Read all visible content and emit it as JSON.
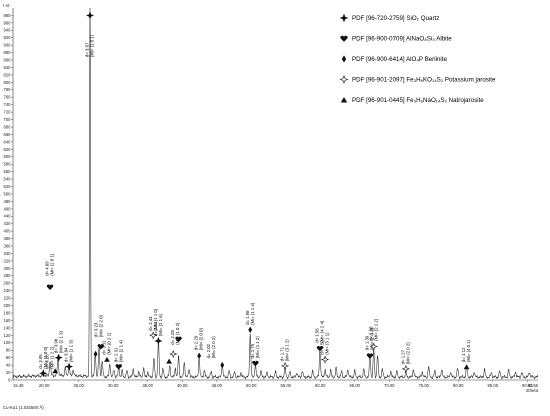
{
  "chart_data": {
    "type": "line",
    "y_unit_label": "I·nt",
    "x_unit_label": "2theta",
    "wavelength_label": "Cu-Kα1 (1.540560 Å)",
    "xlim": [
      15.48,
      91.55
    ],
    "ylim": [
      0,
      1000
    ],
    "x_tick_values": [
      20,
      25,
      30,
      35,
      40,
      45,
      50,
      55,
      60,
      65,
      70,
      75,
      80,
      85,
      90
    ],
    "x_tick_labels": [
      "20.00",
      "25.00",
      "30.00",
      "35.00",
      "40.00",
      "45.00",
      "50.00",
      "55.00",
      "60.00",
      "65.00",
      "70.00",
      "75.00",
      "80.00",
      "85.00",
      "90.00"
    ],
    "x_end_labels": [
      "15.48",
      "91.55"
    ],
    "y_tick_values": [
      0,
      20,
      40,
      60,
      80,
      100,
      120,
      140,
      160,
      180,
      200,
      220,
      240,
      260,
      280,
      300,
      320,
      340,
      360,
      380,
      400,
      420,
      440,
      460,
      480,
      500,
      520,
      540,
      560,
      580,
      600,
      620,
      640,
      660,
      680,
      700,
      720,
      740,
      760,
      780,
      800,
      820,
      840,
      860,
      880,
      900,
      920,
      940,
      960,
      980
    ],
    "grid": false,
    "legend_position": "top-right",
    "legend": [
      {
        "marker": "star4-solid",
        "label": "PDF [96-720-2759] SiO₂ Quartz"
      },
      {
        "marker": "heart",
        "label": "PDF [96-900-0709] AlNaO₈Si₃ Albite"
      },
      {
        "marker": "diamond",
        "label": "PDF [96-900-6414] AlO₄P Berlinite"
      },
      {
        "marker": "star4-open",
        "label": "PDF [96-901-2097] Fe₃H₆KO₁₄S₂ Potassium jarosite"
      },
      {
        "marker": "triangle",
        "label": "PDF [96-901-0445] Fe₃H₆NaO₁₄S₂ Natrojarosite"
      }
    ],
    "peaks": [
      {
        "x": 19.87,
        "y": 12
      },
      {
        "x": 20.85,
        "y": 40
      },
      {
        "x": 22.0,
        "y": 52
      },
      {
        "x": 23.05,
        "y": 22
      },
      {
        "x": 23.6,
        "y": 30
      },
      {
        "x": 24.2,
        "y": 16
      },
      {
        "x": 26.64,
        "y": 1000
      },
      {
        "x": 27.4,
        "y": 62
      },
      {
        "x": 27.95,
        "y": 78
      },
      {
        "x": 28.4,
        "y": 40
      },
      {
        "x": 29.5,
        "y": 35
      },
      {
        "x": 30.1,
        "y": 20
      },
      {
        "x": 30.8,
        "y": 28
      },
      {
        "x": 31.3,
        "y": 18
      },
      {
        "x": 32.0,
        "y": 16
      },
      {
        "x": 32.9,
        "y": 22
      },
      {
        "x": 33.7,
        "y": 15
      },
      {
        "x": 34.4,
        "y": 25
      },
      {
        "x": 35.0,
        "y": 14
      },
      {
        "x": 35.9,
        "y": 50
      },
      {
        "x": 36.55,
        "y": 95
      },
      {
        "x": 37.2,
        "y": 22
      },
      {
        "x": 38.2,
        "y": 30
      },
      {
        "x": 39.0,
        "y": 24
      },
      {
        "x": 39.47,
        "y": 55
      },
      {
        "x": 40.3,
        "y": 40
      },
      {
        "x": 41.0,
        "y": 22
      },
      {
        "x": 42.45,
        "y": 52
      },
      {
        "x": 43.2,
        "y": 18
      },
      {
        "x": 44.2,
        "y": 14
      },
      {
        "x": 45.8,
        "y": 32
      },
      {
        "x": 46.8,
        "y": 16
      },
      {
        "x": 47.6,
        "y": 14
      },
      {
        "x": 48.5,
        "y": 12
      },
      {
        "x": 49.85,
        "y": 115
      },
      {
        "x": 50.6,
        "y": 35
      },
      {
        "x": 51.4,
        "y": 15
      },
      {
        "x": 52.3,
        "y": 12
      },
      {
        "x": 53.5,
        "y": 14
      },
      {
        "x": 54.9,
        "y": 28
      },
      {
        "x": 55.6,
        "y": 14
      },
      {
        "x": 56.6,
        "y": 12
      },
      {
        "x": 57.4,
        "y": 16
      },
      {
        "x": 58.9,
        "y": 15
      },
      {
        "x": 59.95,
        "y": 70
      },
      {
        "x": 60.7,
        "y": 20
      },
      {
        "x": 61.5,
        "y": 18
      },
      {
        "x": 62.3,
        "y": 24
      },
      {
        "x": 63.1,
        "y": 15
      },
      {
        "x": 64.0,
        "y": 22
      },
      {
        "x": 65.0,
        "y": 16
      },
      {
        "x": 66.3,
        "y": 20
      },
      {
        "x": 67.2,
        "y": 55
      },
      {
        "x": 67.75,
        "y": 75
      },
      {
        "x": 68.3,
        "y": 58
      },
      {
        "x": 69.0,
        "y": 20
      },
      {
        "x": 70.2,
        "y": 16
      },
      {
        "x": 71.1,
        "y": 14
      },
      {
        "x": 72.4,
        "y": 14
      },
      {
        "x": 73.5,
        "y": 22
      },
      {
        "x": 74.8,
        "y": 14
      },
      {
        "x": 75.7,
        "y": 28
      },
      {
        "x": 76.6,
        "y": 15
      },
      {
        "x": 77.6,
        "y": 22
      },
      {
        "x": 78.9,
        "y": 14
      },
      {
        "x": 79.9,
        "y": 22
      },
      {
        "x": 81.2,
        "y": 28
      },
      {
        "x": 82.3,
        "y": 14
      },
      {
        "x": 83.8,
        "y": 20
      },
      {
        "x": 84.8,
        "y": 12
      },
      {
        "x": 86.0,
        "y": 14
      },
      {
        "x": 87.3,
        "y": 18
      },
      {
        "x": 88.3,
        "y": 14
      },
      {
        "x": 89.2,
        "y": 12
      },
      {
        "x": 90.3,
        "y": 14
      }
    ],
    "phase_markers": [
      {
        "x": 19.87,
        "y": 18,
        "marker": "star4-solid"
      },
      {
        "x": 21.6,
        "y": 24,
        "marker": "triangle"
      },
      {
        "x": 20.85,
        "y": 250,
        "marker": "heart"
      },
      {
        "x": 22.1,
        "y": 60,
        "marker": "star4-solid"
      },
      {
        "x": 23.6,
        "y": 36,
        "marker": "star4-solid"
      },
      {
        "x": 26.64,
        "y": 980,
        "marker": "star4-solid"
      },
      {
        "x": 27.45,
        "y": 70,
        "marker": "diamond"
      },
      {
        "x": 28.2,
        "y": 90,
        "marker": "heart"
      },
      {
        "x": 29.1,
        "y": 55,
        "marker": "triangle"
      },
      {
        "x": 30.8,
        "y": 36,
        "marker": "heart"
      },
      {
        "x": 35.8,
        "y": 120,
        "marker": "star4-open"
      },
      {
        "x": 36.55,
        "y": 105,
        "marker": "star4-solid"
      },
      {
        "x": 38.1,
        "y": 50,
        "marker": "triangle"
      },
      {
        "x": 38.7,
        "y": 70,
        "marker": "star4-open"
      },
      {
        "x": 39.47,
        "y": 110,
        "marker": "heart"
      },
      {
        "x": 42.45,
        "y": 65,
        "marker": "diamond"
      },
      {
        "x": 45.8,
        "y": 40,
        "marker": "diamond"
      },
      {
        "x": 49.85,
        "y": 135,
        "marker": "diamond"
      },
      {
        "x": 50.6,
        "y": 45,
        "marker": "heart"
      },
      {
        "x": 54.9,
        "y": 38,
        "marker": "star4-open"
      },
      {
        "x": 59.95,
        "y": 85,
        "marker": "heart"
      },
      {
        "x": 60.7,
        "y": 55,
        "marker": "star4-open"
      },
      {
        "x": 67.2,
        "y": 65,
        "marker": "heart"
      },
      {
        "x": 67.75,
        "y": 90,
        "marker": "star4-open"
      },
      {
        "x": 72.4,
        "y": 30,
        "marker": "star4-open"
      },
      {
        "x": 81.2,
        "y": 35,
        "marker": "triangle"
      }
    ],
    "annotations": [
      {
        "x": 19.87,
        "y": 30,
        "d": "d= 3.95",
        "hkl": "(Mi= (1 0 0)"
      },
      {
        "x": 20.85,
        "y": 280,
        "d": "d= 4.09",
        "hkl": "(Mi= (2 0 1)"
      },
      {
        "x": 20.85,
        "y": 30,
        "d": "d= 4.26",
        "hkl": "(Mi= (1 2 2)"
      },
      {
        "x": 22.1,
        "y": 72,
        "d": "d= 3.98",
        "hkl": "(Mi= (2 1 3)"
      },
      {
        "x": 23.6,
        "y": 48,
        "d": "d= 3.84",
        "hkl": "(Mi= (1 1 3)"
      },
      {
        "x": 26.64,
        "y": 868,
        "d": "d= 3.67",
        "hkl": "(Mi= (1 0 1)"
      },
      {
        "x": 27.95,
        "y": 115,
        "d": "d= 3.23",
        "hkl": "(Mi= (2 2 0)"
      },
      {
        "x": 29.1,
        "y": 68,
        "d": "d= 3.11",
        "hkl": "(Mi= (0 2 1)"
      },
      {
        "x": 30.8,
        "y": 48,
        "d": "d= 2.91",
        "hkl": "(Mi= (2 1 4)"
      },
      {
        "x": 35.8,
        "y": 132,
        "d": "d= 2.44",
        "hkl": "(Mi= (1 1 0)"
      },
      {
        "x": 36.55,
        "y": 118,
        "d": "d= 2.53",
        "hkl": "(Mi= (2 1 6)"
      },
      {
        "x": 39.0,
        "y": 95,
        "d": "d= 2.28",
        "hkl": "(Mi= (1 0 2)"
      },
      {
        "x": 42.45,
        "y": 80,
        "d": "d= 2.29",
        "hkl": "(Mi= (2 0 0)"
      },
      {
        "x": 44.2,
        "y": 58,
        "d": "d= 2.02",
        "hkl": "(Mi= (2 0 2)"
      },
      {
        "x": 49.85,
        "y": 148,
        "d": "d= 1.98",
        "hkl": "(Mi= (1 1 4)"
      },
      {
        "x": 50.6,
        "y": 58,
        "d": "d= 1.75",
        "hkl": "(Mi= (1 1 2)"
      },
      {
        "x": 54.9,
        "y": 50,
        "d": "d= 1.71",
        "hkl": "(Mi= (3 1 2)"
      },
      {
        "x": 59.95,
        "y": 100,
        "d": "d= 1.56",
        "hkl": "(Mi= (4 2 4)"
      },
      {
        "x": 60.7,
        "y": 68,
        "d": "d= 1.52",
        "hkl": "(Mi= (3 1 1)"
      },
      {
        "x": 67.2,
        "y": 80,
        "d": "d= 1.39",
        "hkl": "(Mi= (2 0 3)"
      },
      {
        "x": 67.75,
        "y": 105,
        "d": "d= 1.38",
        "hkl": "(Mi= (2 1 2)"
      },
      {
        "x": 72.4,
        "y": 42,
        "d": "d= 1.27",
        "hkl": "(Mi= (2 0 2)"
      },
      {
        "x": 81.2,
        "y": 48,
        "d": "d= 1.12",
        "hkl": "(Mi= (4 0 1)"
      }
    ]
  }
}
